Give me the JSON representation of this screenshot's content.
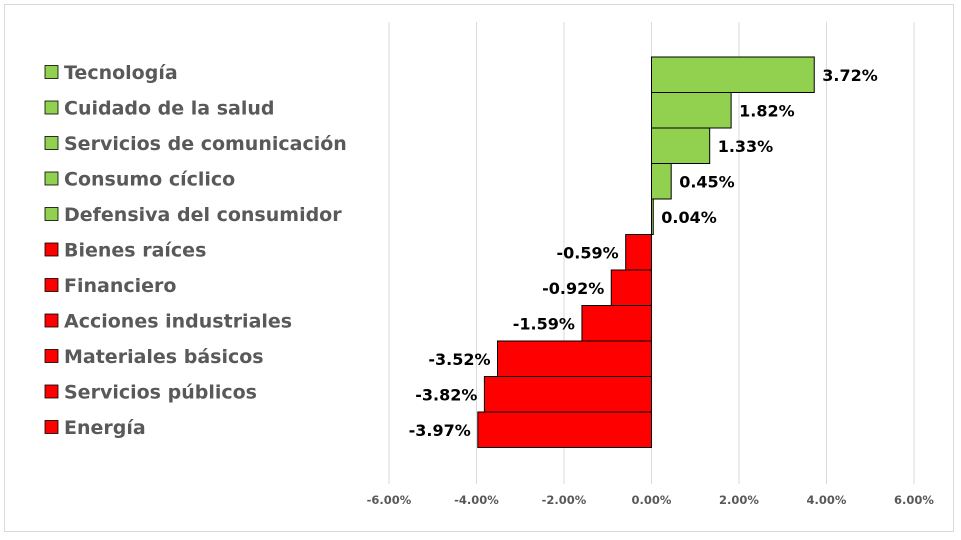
{
  "chart_data": {
    "type": "bar",
    "orientation": "horizontal",
    "title": "",
    "xlabel": "",
    "ylabel": "",
    "categories": [
      "Tecnología",
      "Cuidado de la salud",
      "Servicios de comunicación",
      "Consumo cíclico",
      "Defensiva del consumidor",
      "Bienes raíces",
      "Financiero",
      "Acciones industriales",
      "Materiales básicos",
      "Servicios públicos",
      "Energía"
    ],
    "values": [
      3.72,
      1.82,
      1.33,
      0.45,
      0.04,
      -0.59,
      -0.92,
      -1.59,
      -3.52,
      -3.82,
      -3.97
    ],
    "data_labels": [
      "3.72%",
      "1.82%",
      "1.33%",
      "0.45%",
      "0.04%",
      "-0.59%",
      "-0.92%",
      "-1.59%",
      "-3.52%",
      "-3.82%",
      "-3.97%"
    ],
    "xlim": [
      -6,
      6
    ],
    "x_ticks": [
      -6,
      -4,
      -2,
      0,
      2,
      4,
      6
    ],
    "x_tick_labels": [
      "-6.00%",
      "-4.00%",
      "-2.00%",
      "0.00%",
      "2.00%",
      "4.00%",
      "6.00%"
    ],
    "grid": true,
    "legend_position": "left",
    "colors": {
      "positive": "#92d050",
      "negative": "#ff0000",
      "grid": "#d9d9d9",
      "bar_border": "#000000"
    }
  }
}
